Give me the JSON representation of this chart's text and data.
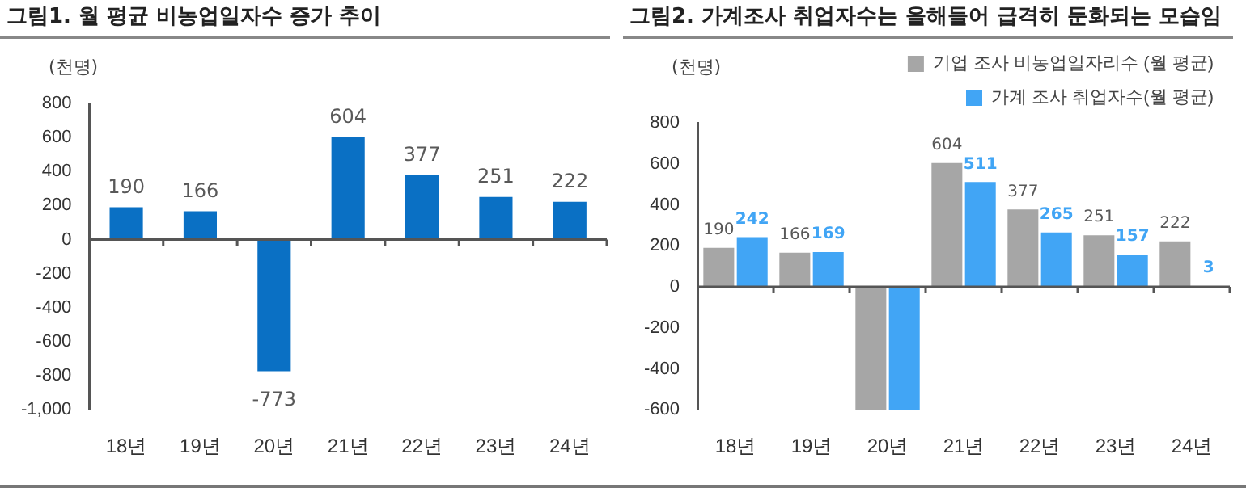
{
  "chart_data": [
    {
      "type": "bar",
      "title": "그림1.  월 평균 비농업일자수 증가 추이",
      "ylabel": "(천명)",
      "categories": [
        "18년",
        "19년",
        "20년",
        "21년",
        "22년",
        "23년",
        "24년"
      ],
      "values": [
        190,
        166,
        -773,
        604,
        377,
        251,
        222
      ],
      "color": "#0a70c4",
      "ylim": [
        -1000,
        800
      ],
      "yticks": [
        {
          "value": -1000,
          "label": "-1,000"
        },
        -800,
        -600,
        -400,
        -200,
        0,
        200,
        400,
        600,
        800
      ],
      "data_labels": true,
      "legend": false
    },
    {
      "type": "bar",
      "title": "그림2.  가계조사 취업자수는 올해들어 급격히 둔화되는 모습임",
      "ylabel": "(천명)",
      "categories": [
        "18년",
        "19년",
        "20년",
        "21년",
        "22년",
        "23년",
        "24년"
      ],
      "series": [
        {
          "name": "기업 조사 비농업일자리수 (월 평균)",
          "color": "#a6a6a6",
          "values": [
            190,
            166,
            -600,
            604,
            377,
            251,
            222
          ],
          "value_labels": [
            "190",
            "166",
            null,
            "604",
            "377",
            "251",
            "222"
          ]
        },
        {
          "name": "가계 조사 취업자수(월 평균)",
          "color": "#41a5f5",
          "values": [
            242,
            169,
            -600,
            511,
            265,
            157,
            3
          ],
          "value_labels": [
            "242",
            "169",
            null,
            "511",
            "265",
            "157",
            "3"
          ]
        }
      ],
      "ylim": [
        -600,
        800
      ],
      "yticks": [
        -600,
        -400,
        -200,
        0,
        200,
        400,
        600,
        800
      ],
      "legend": "top right"
    }
  ]
}
